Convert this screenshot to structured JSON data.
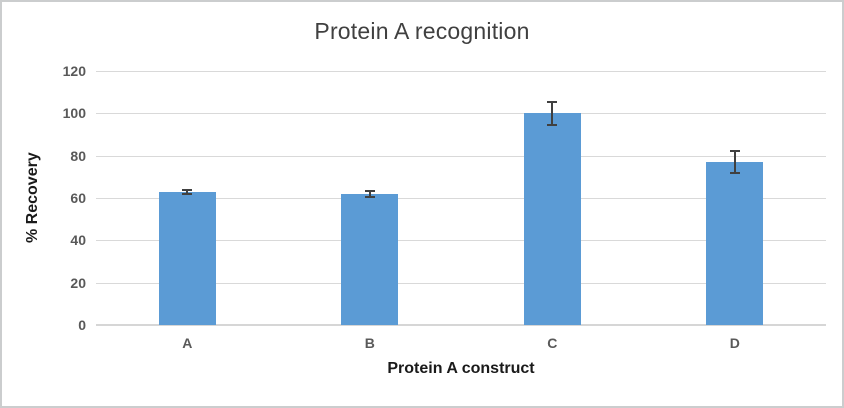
{
  "chart_data": {
    "type": "bar",
    "title": "Protein A recognition",
    "xlabel": "Protein A construct",
    "ylabel": "% Recovery",
    "categories": [
      "A",
      "B",
      "C",
      "D"
    ],
    "values": [
      63,
      62,
      100,
      77
    ],
    "error_bars": [
      1,
      1.5,
      5.5,
      5
    ],
    "ylim": [
      0,
      120
    ],
    "yticks": [
      0,
      20,
      40,
      60,
      80,
      100,
      120
    ],
    "grid": true,
    "legend": "none",
    "bar_color": "#5B9BD5",
    "error_bar_color": "#404040",
    "gridline_color": "#D9D9D9",
    "axis_line_color": "#D6D6D6",
    "tick_label_color": "#595959",
    "title_color": "#404040",
    "axis_title_color": "#1a1a1a"
  }
}
